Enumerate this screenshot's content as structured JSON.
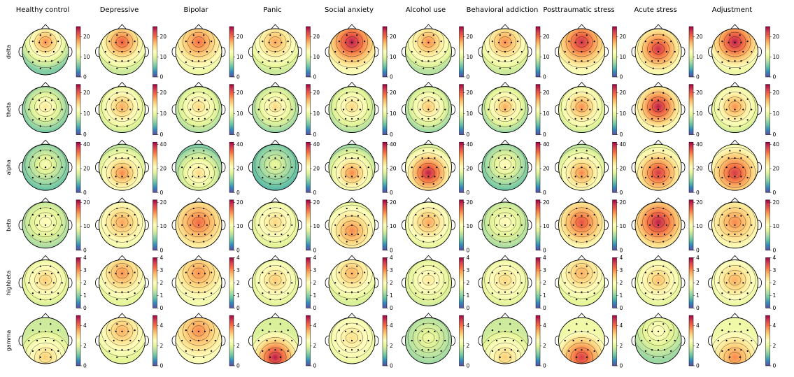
{
  "chart_data": {
    "type": "heatmap",
    "title": "",
    "columns": [
      "Healthy control",
      "Depressive",
      "Bipolar",
      "Panic",
      "Social anxiety",
      "Alcohol use",
      "Behavioral addiction",
      "Posttraumatic stress",
      "Acute stress",
      "Adjustment"
    ],
    "rows": [
      {
        "band": "delta",
        "vmin": 0,
        "vmax": 25,
        "ticks": [
          "0",
          "10",
          "20"
        ],
        "tick_values": [
          0,
          10,
          20
        ],
        "peak": [
          19,
          21,
          20,
          18,
          24,
          19,
          19,
          23,
          23,
          24
        ],
        "base": [
          9,
          12,
          14,
          12,
          15,
          11,
          12,
          15,
          13,
          14
        ],
        "focus": [
          "top",
          "top",
          "top",
          "top",
          "top",
          "top",
          "top",
          "top",
          "center",
          "top"
        ]
      },
      {
        "band": "theta",
        "vmin": 0,
        "vmax": 24,
        "ticks": [
          "0",
          "10",
          "20"
        ],
        "tick_values": [
          0,
          10,
          20
        ],
        "peak": [
          14,
          17,
          15,
          15,
          15,
          16,
          17,
          18,
          23,
          18
        ],
        "base": [
          7,
          10,
          9,
          8,
          9,
          8,
          8,
          10,
          12,
          10
        ],
        "focus": [
          "center",
          "center",
          "center",
          "center",
          "center",
          "center",
          "center",
          "center",
          "center",
          "center"
        ]
      },
      {
        "band": "alpha",
        "vmin": 0,
        "vmax": 42,
        "ticks": [
          "0",
          "20",
          "40"
        ],
        "tick_values": [
          0,
          20,
          40
        ],
        "peak": [
          20,
          32,
          26,
          18,
          32,
          40,
          22,
          32,
          38,
          38
        ],
        "base": [
          12,
          18,
          14,
          11,
          16,
          20,
          12,
          18,
          22,
          24
        ],
        "focus": [
          "center",
          "lower",
          "lower",
          "center",
          "lower",
          "lower",
          "center",
          "lower",
          "lower",
          "lower"
        ]
      },
      {
        "band": "beta",
        "vmin": 0,
        "vmax": 21,
        "ticks": [
          "0",
          "10",
          "20"
        ],
        "tick_values": [
          0,
          10,
          20
        ],
        "peak": [
          11,
          15,
          17,
          13,
          16,
          15,
          11,
          18,
          20,
          16
        ],
        "base": [
          8,
          11,
          13,
          10,
          11,
          10,
          8,
          12,
          13,
          12
        ],
        "focus": [
          "center",
          "center",
          "center",
          "center",
          "lower",
          "center",
          "center",
          "center",
          "center",
          "center"
        ]
      },
      {
        "band": "highbeta",
        "vmin": 0,
        "vmax": 4,
        "ticks": [
          "0",
          "1",
          "2",
          "3",
          "4"
        ],
        "tick_values": [
          0,
          1,
          2,
          3,
          4
        ],
        "peak": [
          2.6,
          3.0,
          3.0,
          2.6,
          2.8,
          2.3,
          2.5,
          2.8,
          2.7,
          2.8
        ],
        "base": [
          1.8,
          2.1,
          2.3,
          1.9,
          2.0,
          1.8,
          1.9,
          2.1,
          1.9,
          2.0
        ],
        "focus": [
          "center",
          "top",
          "top",
          "center",
          "top",
          "center",
          "center",
          "top",
          "center",
          "center"
        ]
      },
      {
        "band": "gamma",
        "vmin": 0,
        "vmax": 5,
        "ticks": [
          "0",
          "2",
          "4"
        ],
        "tick_values": [
          0,
          2,
          4
        ],
        "peak": [
          3.2,
          3.5,
          3.8,
          4.8,
          3.0,
          2.2,
          3.2,
          4.5,
          2.6,
          3.8
        ],
        "base": [
          2.4,
          2.6,
          3.0,
          2.5,
          2.6,
          1.9,
          2.4,
          2.8,
          2.0,
          2.8
        ],
        "focus": [
          "bottom",
          "top",
          "top",
          "bottom",
          "center",
          "center",
          "bottom",
          "bottom",
          "top",
          "bottom"
        ]
      }
    ],
    "colormap": [
      "#5e4fa2",
      "#3288bd",
      "#66c2a5",
      "#abdda4",
      "#e6f598",
      "#ffffbf",
      "#fee08b",
      "#fdae61",
      "#f46d43",
      "#d53e4f",
      "#9e0142"
    ]
  }
}
